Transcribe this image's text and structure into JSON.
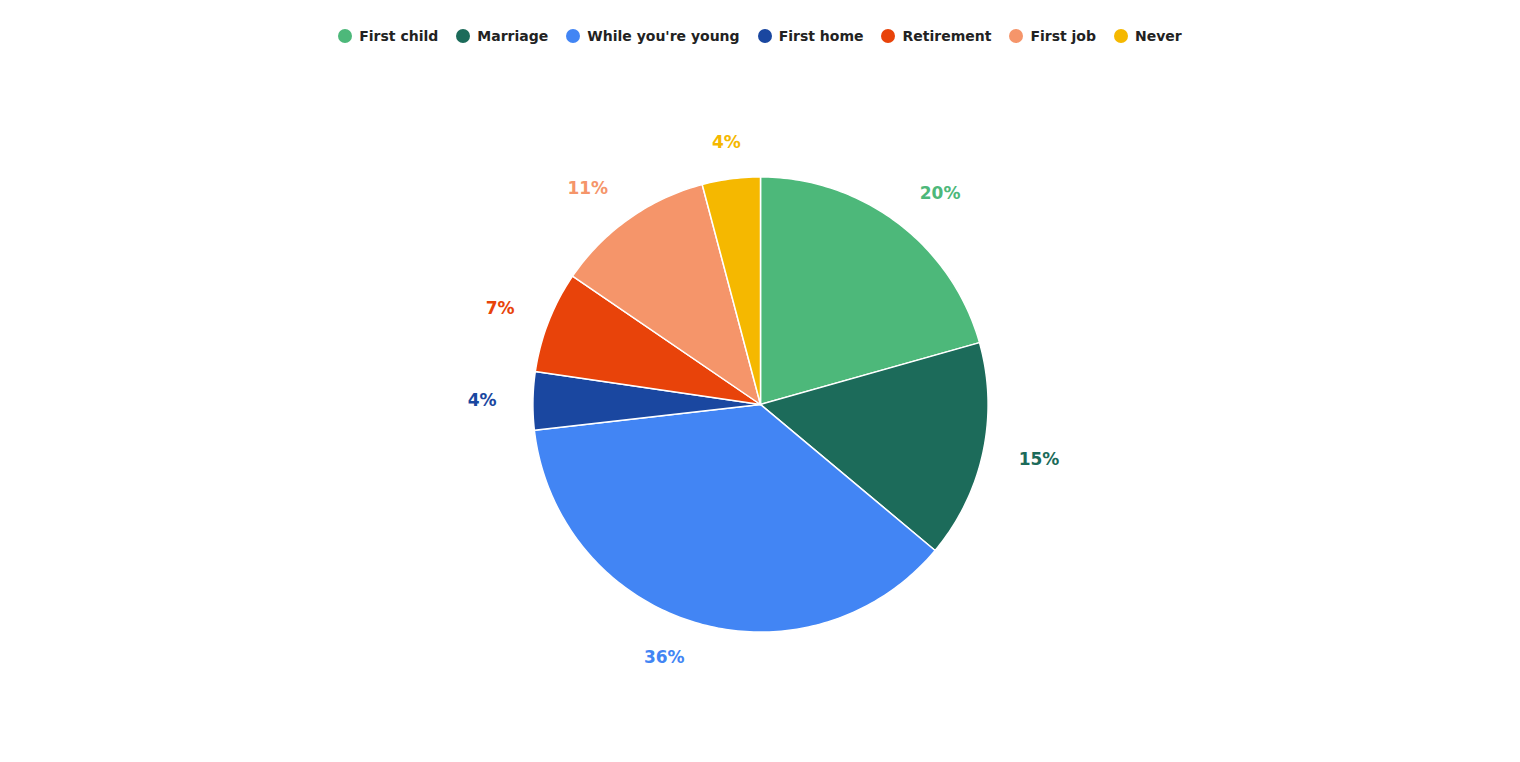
{
  "chart_data": {
    "type": "pie",
    "categories": [
      "First child",
      "Marriage",
      "While you're young",
      "First home",
      "Retirement",
      "First job",
      "Never"
    ],
    "values": [
      20,
      15,
      36,
      4,
      7,
      11,
      4
    ],
    "value_labels": [
      "20%",
      "15%",
      "36%",
      "4%",
      "7%",
      "11%",
      "4%"
    ],
    "colors": [
      "#4DB87A",
      "#1C6B5A",
      "#4285F4",
      "#1A47A0",
      "#E8430A",
      "#F5956A",
      "#F5B800"
    ],
    "data_labels": true,
    "legend": "top"
  }
}
